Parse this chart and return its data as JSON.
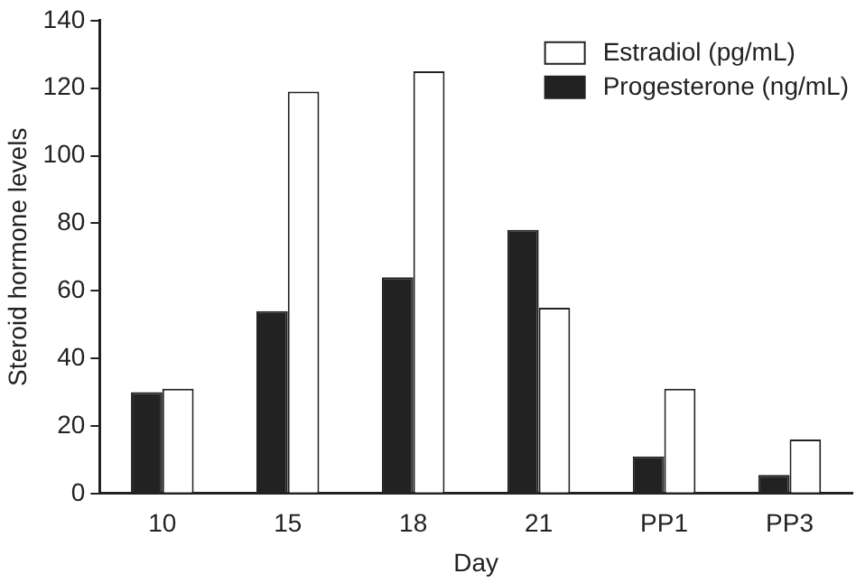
{
  "chart_data": {
    "type": "bar",
    "xlabel": "Day",
    "ylabel": "Steroid hormone levels",
    "categories": [
      "10",
      "15",
      "18",
      "21",
      "PP1",
      "PP3"
    ],
    "series": [
      {
        "name": "Progesterone (ng/mL)",
        "color": "#222222",
        "values": [
          30,
          54,
          64,
          78,
          11,
          5.5
        ]
      },
      {
        "name": "Estradiol (pg/mL)",
        "color": "#ffffff",
        "values": [
          31,
          119,
          125,
          55,
          31,
          16
        ]
      }
    ],
    "ylim": [
      0,
      140
    ],
    "yticks": [
      0,
      20,
      40,
      60,
      80,
      100,
      120,
      140
    ],
    "grid": false,
    "legend": "top right"
  }
}
